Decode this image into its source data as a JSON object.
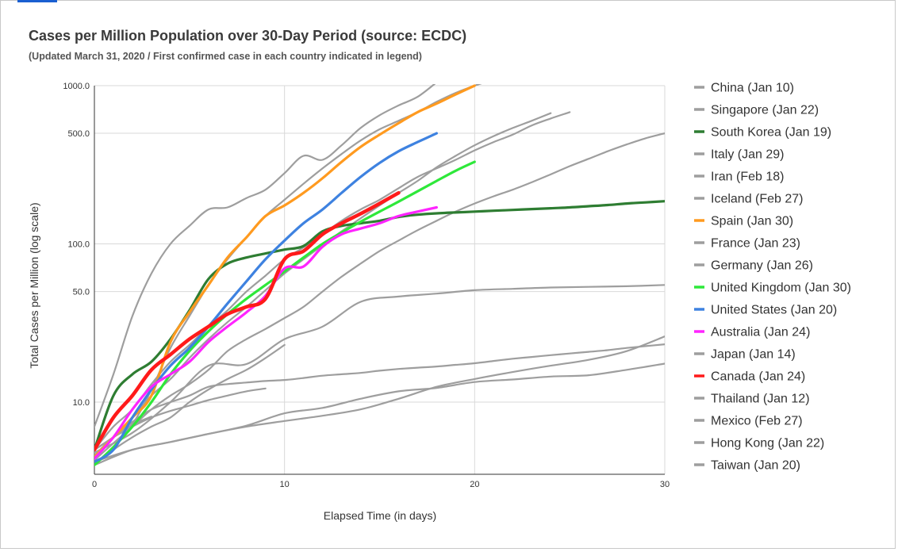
{
  "chart_data": {
    "type": "line",
    "title": "Cases per Million Population over 30-Day Period (source: ECDC)",
    "subtitle": "(Updated March 31, 2020 / First confirmed case in each country indicated in legend)",
    "xlabel": "Elapsed Time (in days)",
    "ylabel": "Total Cases per Million (log scale)",
    "x_scale": "linear",
    "y_scale": "log",
    "xlim": [
      0,
      30
    ],
    "ylim": [
      3.5,
      1000
    ],
    "x_ticks": [
      0,
      10,
      20,
      30
    ],
    "x_tick_labels": [
      "0",
      "10",
      "20",
      "30"
    ],
    "y_ticks": [
      10,
      50,
      100,
      500,
      1000
    ],
    "y_tick_labels": [
      "10.0",
      "50.0",
      "100.0",
      "500.0",
      "1000.0"
    ],
    "grid": true,
    "legend_position": "right",
    "series": [
      {
        "name": "China (Jan 10)",
        "color": "#9e9e9e",
        "x": [
          0,
          1,
          2,
          3,
          4,
          5,
          6,
          7,
          8,
          9,
          10,
          11,
          12,
          13,
          14,
          15,
          16,
          17,
          18,
          19,
          20,
          21,
          22,
          23,
          24,
          25,
          26,
          27,
          28,
          29,
          30
        ],
        "y": [
          5,
          6,
          7.5,
          9,
          10,
          11,
          12.5,
          13,
          13.3,
          13.6,
          13.8,
          14.2,
          14.7,
          15,
          15.3,
          15.8,
          16.2,
          16.5,
          16.8,
          17.2,
          17.6,
          18.2,
          18.8,
          19.3,
          19.8,
          20.3,
          20.8,
          21.3,
          22,
          22.6,
          23.2
        ]
      },
      {
        "name": "Singapore (Jan 22)",
        "color": "#9e9e9e",
        "x": [
          0,
          2,
          4,
          6,
          8,
          10,
          12,
          14,
          16,
          18,
          20,
          22,
          24,
          26,
          28,
          30
        ],
        "y": [
          4.2,
          5,
          5.6,
          6.3,
          7,
          7.6,
          8.2,
          9,
          10.5,
          12.5,
          14,
          15.5,
          17,
          18.5,
          21,
          26
        ]
      },
      {
        "name": "South Korea (Jan 19)",
        "color": "#2e7d32",
        "x": [
          0,
          1,
          2,
          3,
          4,
          5,
          6,
          7,
          8,
          9,
          10,
          11,
          12,
          13,
          14,
          15,
          16,
          17,
          18,
          19,
          20,
          21,
          22,
          23,
          24,
          25,
          26,
          27,
          28,
          29,
          30
        ],
        "y": [
          5,
          11,
          15,
          18,
          25,
          38,
          60,
          75,
          82,
          87,
          92,
          97,
          120,
          130,
          135,
          140,
          148,
          153,
          156,
          158,
          160,
          162,
          164,
          166,
          168,
          170,
          173,
          176,
          180,
          183,
          186
        ]
      },
      {
        "name": "Italy (Jan 29)",
        "color": "#9e9e9e",
        "x": [
          0,
          1,
          2,
          3,
          4,
          5,
          6,
          7,
          8,
          9,
          10,
          11,
          12,
          13,
          14,
          15,
          16,
          17,
          18,
          19,
          20,
          21,
          22
        ],
        "y": [
          5,
          6,
          7.3,
          12,
          22,
          35,
          55,
          80,
          110,
          150,
          190,
          240,
          300,
          370,
          450,
          530,
          600,
          680,
          790,
          900,
          1000,
          1100,
          1250
        ]
      },
      {
        "name": "Iran (Feb 18)",
        "color": "#9e9e9e",
        "x": [
          0,
          1,
          2,
          3,
          4,
          5,
          6,
          7,
          8,
          9,
          10,
          11,
          12,
          13,
          14,
          15,
          16,
          17,
          18,
          19,
          20,
          21,
          22,
          23,
          24,
          25,
          26,
          27,
          28,
          29,
          30
        ],
        "y": [
          4.3,
          5.5,
          7,
          9,
          11,
          13,
          16,
          21,
          25,
          29,
          34,
          40,
          50,
          62,
          75,
          90,
          105,
          122,
          140,
          160,
          180,
          200,
          220,
          245,
          275,
          310,
          345,
          385,
          425,
          465,
          500
        ]
      },
      {
        "name": "Iceland (Feb 27)",
        "color": "#9e9e9e",
        "x": [
          0,
          1,
          2,
          3,
          4,
          5,
          6,
          7,
          8,
          9,
          10,
          11,
          12,
          13,
          14,
          15,
          16,
          17,
          18
        ],
        "y": [
          7,
          15,
          35,
          65,
          100,
          130,
          165,
          170,
          195,
          220,
          280,
          360,
          340,
          420,
          540,
          650,
          750,
          850,
          1050
        ]
      },
      {
        "name": "Spain (Jan 30)",
        "color": "#ff9a1f",
        "x": [
          0,
          1,
          2,
          3,
          4,
          5,
          6,
          7,
          8,
          9,
          10,
          11,
          12,
          13,
          14,
          15,
          16,
          17,
          18,
          19,
          20
        ],
        "y": [
          4.5,
          6,
          8,
          11,
          24,
          37,
          55,
          82,
          110,
          150,
          175,
          210,
          260,
          330,
          410,
          490,
          580,
          680,
          770,
          880,
          1000
        ]
      },
      {
        "name": "France (Jan 23)",
        "color": "#9e9e9e",
        "x": [
          0,
          1,
          2,
          3,
          4,
          5,
          6,
          7,
          8,
          9,
          10,
          11,
          12,
          13,
          14,
          15,
          16,
          17,
          18,
          19,
          20,
          21,
          22,
          23,
          24
        ],
        "y": [
          4.6,
          6,
          8,
          11,
          14,
          19,
          25,
          32,
          40,
          51,
          65,
          80,
          98,
          120,
          145,
          175,
          210,
          250,
          305,
          360,
          420,
          480,
          540,
          600,
          670
        ]
      },
      {
        "name": "Germany (Jan 26)",
        "color": "#9e9e9e",
        "x": [
          0,
          1,
          2,
          3,
          4,
          5,
          6,
          7,
          8,
          9,
          10,
          11,
          12,
          13,
          14,
          15,
          16,
          17,
          18,
          19,
          20,
          21,
          22,
          23,
          24,
          25
        ],
        "y": [
          5,
          7,
          9,
          13,
          18,
          23,
          30,
          38,
          50,
          63,
          80,
          95,
          115,
          140,
          165,
          190,
          225,
          265,
          300,
          340,
          390,
          440,
          490,
          560,
          620,
          680
        ]
      },
      {
        "name": "United Kingdom (Jan 30)",
        "color": "#2ee83a",
        "x": [
          0,
          1,
          2,
          3,
          4,
          5,
          6,
          7,
          8,
          9,
          10,
          11,
          12,
          13,
          14,
          15,
          16,
          17,
          18,
          19,
          20
        ],
        "y": [
          4,
          5.2,
          7,
          10,
          15,
          21,
          28,
          36,
          45,
          55,
          67,
          82,
          100,
          118,
          138,
          160,
          185,
          215,
          250,
          290,
          330
        ]
      },
      {
        "name": "United States (Jan 20)",
        "color": "#3e82e0",
        "x": [
          0,
          1,
          2,
          3,
          4,
          5,
          6,
          7,
          8,
          9,
          10,
          11,
          12,
          13,
          14,
          15,
          16,
          17,
          18
        ],
        "y": [
          4.2,
          5,
          8,
          12,
          17,
          22,
          30,
          42,
          58,
          80,
          105,
          135,
          165,
          210,
          265,
          325,
          385,
          440,
          500
        ]
      },
      {
        "name": "Australia (Jan 24)",
        "color": "#ff24ff",
        "x": [
          0,
          1,
          2,
          3,
          4,
          5,
          6,
          7,
          8,
          9,
          10,
          11,
          12,
          13,
          14,
          15,
          16,
          17,
          18
        ],
        "y": [
          4.4,
          6,
          9,
          12.5,
          15,
          18,
          24,
          30,
          37,
          47,
          70,
          72,
          96,
          115,
          125,
          135,
          150,
          160,
          170
        ]
      },
      {
        "name": "Japan (Jan 14)",
        "color": "#9e9e9e",
        "x": [
          0,
          2,
          4,
          6,
          8,
          10,
          12,
          14,
          16,
          18,
          20,
          22,
          24,
          26,
          28,
          30
        ],
        "y": [
          4,
          5,
          5.6,
          6.3,
          7.1,
          8.5,
          9.2,
          10.5,
          11.7,
          12.3,
          13.4,
          13.9,
          14.5,
          14.8,
          16,
          17.5
        ]
      },
      {
        "name": "Canada (Jan 24)",
        "color": "#ff1a1a",
        "x": [
          0,
          1,
          2,
          3,
          4,
          5,
          6,
          7,
          8,
          9,
          10,
          11,
          12,
          13,
          14,
          15,
          16
        ],
        "y": [
          5,
          8,
          11,
          16,
          20,
          25,
          30,
          36,
          40,
          45,
          80,
          90,
          115,
          135,
          155,
          180,
          210
        ]
      },
      {
        "name": "Thailand (Jan 12)",
        "color": "#9e9e9e",
        "x": [
          0,
          2,
          4,
          6,
          8,
          10,
          12,
          14,
          16,
          18,
          20,
          22,
          24,
          26,
          28,
          30
        ],
        "y": [
          4.8,
          6.4,
          10,
          17,
          17.4,
          25,
          30,
          43,
          46.5,
          48.5,
          51,
          52,
          53,
          53.5,
          54,
          55
        ]
      },
      {
        "name": "Mexico (Feb 27)",
        "color": "#9e9e9e",
        "x": [
          0,
          1,
          2,
          3,
          4,
          5,
          6,
          7,
          8,
          9,
          10
        ],
        "y": [
          4,
          5,
          6,
          7,
          8,
          10,
          12,
          14,
          16,
          19,
          23
        ]
      },
      {
        "name": "Hong Kong (Jan 22)",
        "color": "#9e9e9e",
        "x": [
          0,
          1,
          2,
          3,
          4,
          5,
          6,
          7,
          8,
          9
        ],
        "y": [
          4.6,
          6,
          7,
          8,
          8.8,
          9.5,
          10.3,
          11,
          11.7,
          12.2
        ]
      },
      {
        "name": "Taiwan (Jan 20)",
        "color": "#9e9e9e",
        "x": [
          0,
          1,
          2,
          3
        ],
        "y": [
          5,
          6,
          7.2,
          8.1
        ]
      }
    ]
  }
}
